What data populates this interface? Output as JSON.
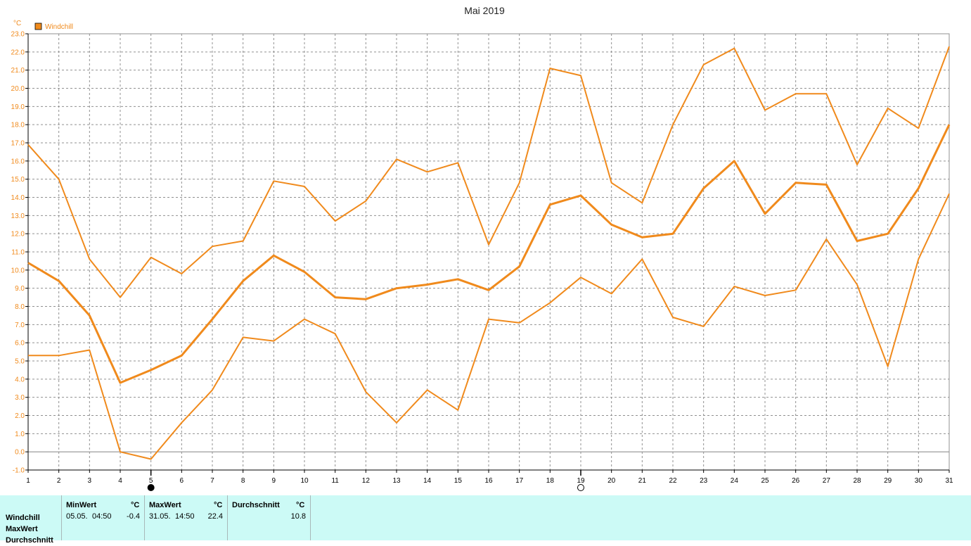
{
  "chart_data": {
    "type": "line",
    "title": "Mai 2019",
    "ylabel": "°C",
    "legend": {
      "entries": [
        "Windchill"
      ],
      "placement": "top-left"
    },
    "ylim": [
      -1.0,
      23.0
    ],
    "ytick_step": 1.0,
    "yticks": [
      "-1.0",
      "0.0",
      "1.0",
      "2.0",
      "3.0",
      "4.0",
      "5.0",
      "6.0",
      "7.0",
      "8.0",
      "9.0",
      "10.0",
      "11.0",
      "12.0",
      "13.0",
      "14.0",
      "15.0",
      "16.0",
      "17.0",
      "18.0",
      "19.0",
      "20.0",
      "21.0",
      "22.0",
      "23.0"
    ],
    "x": [
      "1",
      "2",
      "3",
      "4",
      "5",
      "6",
      "7",
      "8",
      "9",
      "10",
      "11",
      "12",
      "13",
      "14",
      "15",
      "16",
      "17",
      "18",
      "19",
      "20",
      "21",
      "22",
      "23",
      "24",
      "25",
      "26",
      "27",
      "28",
      "29",
      "30",
      "31"
    ],
    "grid": true,
    "series": [
      {
        "role": "max",
        "values": [
          16.9,
          15.0,
          10.6,
          8.5,
          10.7,
          9.8,
          11.3,
          11.6,
          14.9,
          14.6,
          12.7,
          13.8,
          16.1,
          15.4,
          15.9,
          11.4,
          14.8,
          21.1,
          20.7,
          14.8,
          13.7,
          18.0,
          21.3,
          22.2,
          18.8,
          19.7,
          19.7,
          15.8,
          18.9,
          17.8,
          22.3
        ]
      },
      {
        "role": "mean",
        "values": [
          10.4,
          9.4,
          7.5,
          3.8,
          4.5,
          5.3,
          7.3,
          9.4,
          10.8,
          9.9,
          8.5,
          8.4,
          9.0,
          9.2,
          9.5,
          8.9,
          10.2,
          13.6,
          14.1,
          12.5,
          11.8,
          12.0,
          14.5,
          16.0,
          13.1,
          14.8,
          14.7,
          11.6,
          12.0,
          14.5,
          18.0
        ]
      },
      {
        "role": "min",
        "values": [
          5.3,
          5.3,
          5.6,
          0.0,
          -0.4,
          1.6,
          3.4,
          6.3,
          6.1,
          7.3,
          6.5,
          3.3,
          1.6,
          3.4,
          2.3,
          7.3,
          7.1,
          8.2,
          9.6,
          8.7,
          10.6,
          7.4,
          6.9,
          9.1,
          8.6,
          8.9,
          11.7,
          9.2,
          4.7,
          10.6,
          14.2
        ]
      }
    ],
    "colors": {
      "series": "#f08a1c",
      "grid": "#909090",
      "axis": "#000000",
      "title": "#222222"
    },
    "moon_markers": [
      {
        "x": "5",
        "phase": "new-moon"
      },
      {
        "x": "19",
        "phase": "full-moon"
      }
    ]
  },
  "stats": {
    "row_labels": [
      "Windchill",
      "MaxWert",
      "Durchschnitt"
    ],
    "min": {
      "header": "MinWert",
      "unit": "°C",
      "date": "05.05.",
      "time": "04:50",
      "value": "-0.4"
    },
    "max": {
      "header": "MaxWert",
      "unit": "°C",
      "date": "31.05.",
      "time": "14:50",
      "value": "22.4"
    },
    "avg": {
      "header": "Durchschnitt",
      "unit": "°C",
      "value": "10.8"
    }
  }
}
